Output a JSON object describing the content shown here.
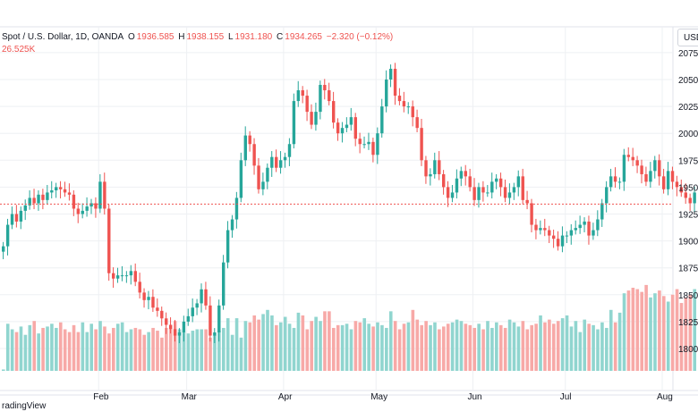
{
  "legend": {
    "symbol": "Spot / U.S. Dollar, 1D, OANDA",
    "o_label": "O",
    "open": "1936.585",
    "h_label": "H",
    "high": "1938.155",
    "l_label": "L",
    "low": "1931.180",
    "c_label": "C",
    "close": "1934.265",
    "change": "−2.320 (−0.12%)",
    "volume": "26.525K"
  },
  "currency_button": "USD",
  "brand_text": "radingView",
  "colors": {
    "up": "#26a69a",
    "down": "#ef5350",
    "up_volume": "#90d5cf",
    "down_volume": "#f7a9a7",
    "grid": "#eef0f3",
    "last_price_line": "#ef5350",
    "axis_text": "#131722"
  },
  "chart_data": {
    "type": "candlestick",
    "price_axis_ticks": [
      1800,
      1825,
      1850,
      1875,
      1900,
      1925,
      1950,
      1975,
      2000,
      2025,
      2050,
      2075
    ],
    "ylim": [
      1780,
      2075
    ],
    "months": [
      {
        "label": "Feb",
        "index": 22
      },
      {
        "label": "Mar",
        "index": 42
      },
      {
        "label": "Apr",
        "index": 64
      },
      {
        "label": "May",
        "index": 85
      },
      {
        "label": "Jun",
        "index": 107
      },
      {
        "label": "Jul",
        "index": 128
      },
      {
        "label": "Aug",
        "index": 150
      }
    ],
    "last_price": 1934.265,
    "closes": [
      1895,
      1915,
      1925,
      1918,
      1928,
      1933,
      1940,
      1935,
      1943,
      1938,
      1945,
      1947,
      1950,
      1948,
      1945,
      1943,
      1930,
      1925,
      1928,
      1932,
      1935,
      1930,
      1955,
      1930,
      1870,
      1865,
      1868,
      1868,
      1868,
      1872,
      1862,
      1852,
      1845,
      1848,
      1838,
      1835,
      1828,
      1822,
      1818,
      1812,
      1815,
      1825,
      1830,
      1838,
      1842,
      1855,
      1840,
      1812,
      1815,
      1840,
      1880,
      1910,
      1920,
      1940,
      1975,
      1998,
      1990,
      1970,
      1948,
      1955,
      1968,
      1978,
      1968,
      1975,
      1978,
      1990,
      2030,
      2040,
      2035,
      2020,
      2008,
      2020,
      2045,
      2040,
      2030,
      2010,
      2000,
      2005,
      2008,
      2015,
      1995,
      1990,
      1990,
      1992,
      1980,
      2000,
      2025,
      2050,
      2060,
      2035,
      2030,
      2025,
      2025,
      2015,
      2005,
      1975,
      1960,
      1962,
      1975,
      1962,
      1950,
      1940,
      1945,
      1958,
      1965,
      1960,
      1950,
      1938,
      1950,
      1945,
      1945,
      1955,
      1958,
      1950,
      1940,
      1945,
      1950,
      1960,
      1938,
      1935,
      1915,
      1910,
      1912,
      1910,
      1905,
      1902,
      1895,
      1905,
      1905,
      1910,
      1912,
      1915,
      1918,
      1905,
      1910,
      1920,
      1935,
      1950,
      1960,
      1955,
      1955,
      1980,
      1978,
      1975,
      1970,
      1962,
      1955,
      1965,
      1975,
      1960,
      1948,
      1965,
      1955,
      1950,
      1945,
      1940,
      1935,
      1945
    ],
    "volumes": [
      1,
      34,
      30,
      28,
      32,
      26,
      33,
      36,
      27,
      31,
      32,
      34,
      31,
      35,
      30,
      28,
      33,
      28,
      35,
      28,
      34,
      30,
      36,
      32,
      27,
      31,
      34,
      35,
      28,
      30,
      31,
      30,
      26,
      28,
      31,
      29,
      24,
      31,
      30,
      36,
      30,
      28,
      27,
      29,
      30,
      30,
      30,
      24,
      26,
      29,
      31,
      38,
      26,
      38,
      24,
      36,
      35,
      40,
      37,
      41,
      44,
      40,
      33,
      35,
      39,
      34,
      31,
      42,
      40,
      30,
      36,
      39,
      36,
      43,
      43,
      31,
      33,
      33,
      34,
      30,
      36,
      35,
      38,
      34,
      32,
      35,
      33,
      31,
      43,
      36,
      30,
      34,
      35,
      44,
      37,
      33,
      36,
      33,
      35,
      30,
      32,
      34,
      35,
      37,
      36,
      34,
      33,
      31,
      34,
      30,
      36,
      31,
      35,
      33,
      31,
      37,
      35,
      32,
      36,
      30,
      33,
      34,
      40,
      35,
      37,
      34,
      36,
      38,
      40,
      32,
      36,
      28,
      37,
      34,
      33,
      30,
      35,
      31,
      44,
      35,
      42,
      56,
      58,
      60,
      59,
      57,
      62,
      53,
      56,
      58,
      54,
      50,
      55,
      59,
      49,
      53,
      55,
      59
    ]
  }
}
